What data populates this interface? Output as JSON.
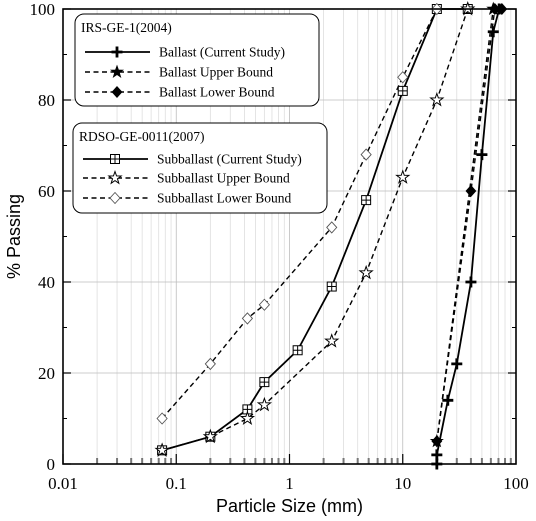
{
  "chart_data": {
    "type": "line",
    "xlabel": "Particle Size (mm)",
    "ylabel": "% Passing",
    "x_scale": "log",
    "xlim": [
      0.01,
      100
    ],
    "ylim": [
      0,
      100
    ],
    "x_tick_labels": [
      "0.01",
      "0.1",
      "1",
      "10",
      "100"
    ],
    "y_tick_labels": [
      "0",
      "20",
      "40",
      "60",
      "80",
      "100"
    ],
    "grid": true,
    "legend_groups": [
      {
        "title": "IRS-GE-1(2004)",
        "series_indices": [
          0,
          1,
          2
        ],
        "placement": "top-left"
      },
      {
        "title": "RDSO-GE-0011(2007)",
        "series_indices": [
          3,
          4,
          5
        ],
        "placement": "upper-left"
      }
    ],
    "series": [
      {
        "name": "Ballast (Current Study)",
        "marker": "plus",
        "line": "solid",
        "color": "#000000",
        "points": [
          [
            20,
            0
          ],
          [
            20,
            2
          ],
          [
            25,
            14
          ],
          [
            30,
            22
          ],
          [
            40,
            40
          ],
          [
            50,
            68
          ],
          [
            63,
            95
          ],
          [
            71,
            100
          ]
        ]
      },
      {
        "name": "Ballast Upper Bound",
        "marker": "star",
        "line": "dashed",
        "color": "#000000",
        "points": [
          [
            20,
            5
          ],
          [
            63,
            100
          ]
        ]
      },
      {
        "name": "Ballast Lower Bound",
        "marker": "diamond-filled",
        "line": "dashed",
        "color": "#000000",
        "points": [
          [
            20,
            5
          ],
          [
            40,
            60
          ],
          [
            65,
            100
          ],
          [
            75,
            100
          ]
        ]
      },
      {
        "name": "Subballast (Current Study)",
        "marker": "square-plus",
        "line": "solid",
        "color": "#000000",
        "points": [
          [
            0.075,
            3
          ],
          [
            0.2,
            6
          ],
          [
            0.425,
            12
          ],
          [
            0.6,
            18
          ],
          [
            1.18,
            25
          ],
          [
            2.36,
            39
          ],
          [
            4.75,
            58
          ],
          [
            10,
            82
          ],
          [
            20,
            100
          ],
          [
            37.5,
            100
          ]
        ]
      },
      {
        "name": "Subballast Upper Bound",
        "marker": "star-open",
        "line": "dashed",
        "color": "#000000",
        "points": [
          [
            0.075,
            3
          ],
          [
            0.2,
            6
          ],
          [
            0.425,
            10
          ],
          [
            0.6,
            13
          ],
          [
            2.36,
            27
          ],
          [
            4.75,
            42
          ],
          [
            10,
            63
          ],
          [
            20,
            80
          ],
          [
            37.5,
            100
          ]
        ]
      },
      {
        "name": "Subballast Lower Bound",
        "marker": "diamond-open",
        "line": "dashed",
        "color": "#000000",
        "points": [
          [
            0.075,
            10
          ],
          [
            0.2,
            22
          ],
          [
            0.425,
            32
          ],
          [
            0.6,
            35
          ],
          [
            2.36,
            52
          ],
          [
            4.75,
            68
          ],
          [
            10,
            85
          ],
          [
            20,
            100
          ]
        ]
      }
    ]
  }
}
